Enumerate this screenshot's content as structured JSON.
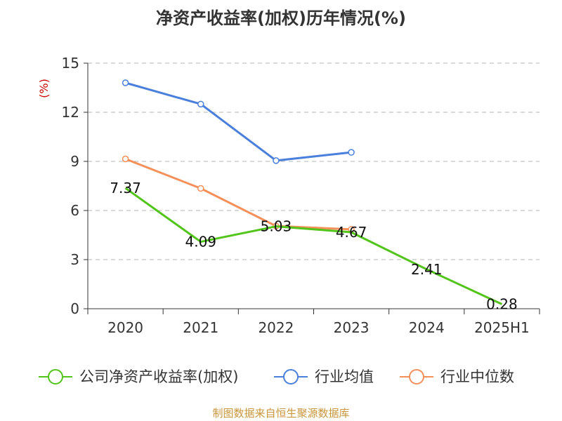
{
  "chart_data": {
    "type": "line",
    "title": "净资产收益率(加权)历年情况(%)",
    "ylabel": "(%)",
    "xlabel": "",
    "categories": [
      "2020",
      "2021",
      "2022",
      "2023",
      "2024",
      "2025H1"
    ],
    "ylim": [
      0,
      15
    ],
    "yticks": [
      0,
      3,
      6,
      9,
      12,
      15
    ],
    "grid": true,
    "legend_position": "bottom",
    "series": [
      {
        "name": "公司净资产收益率(加权)",
        "color": "#52c41a",
        "values": [
          7.37,
          4.09,
          5.03,
          4.67,
          2.41,
          0.28
        ],
        "labels": [
          "7.37",
          "4.09",
          "5.03",
          "4.67",
          "2.41",
          "0.28"
        ]
      },
      {
        "name": "行业均值",
        "color": "#4a7fdc",
        "values": [
          13.8,
          12.5,
          9.05,
          9.55,
          null,
          null
        ]
      },
      {
        "name": "行业中位数",
        "color": "#f5905a",
        "values": [
          9.15,
          7.35,
          5.05,
          4.85,
          null,
          null
        ]
      }
    ],
    "source": "制图数据来自恒生聚源数据库"
  }
}
